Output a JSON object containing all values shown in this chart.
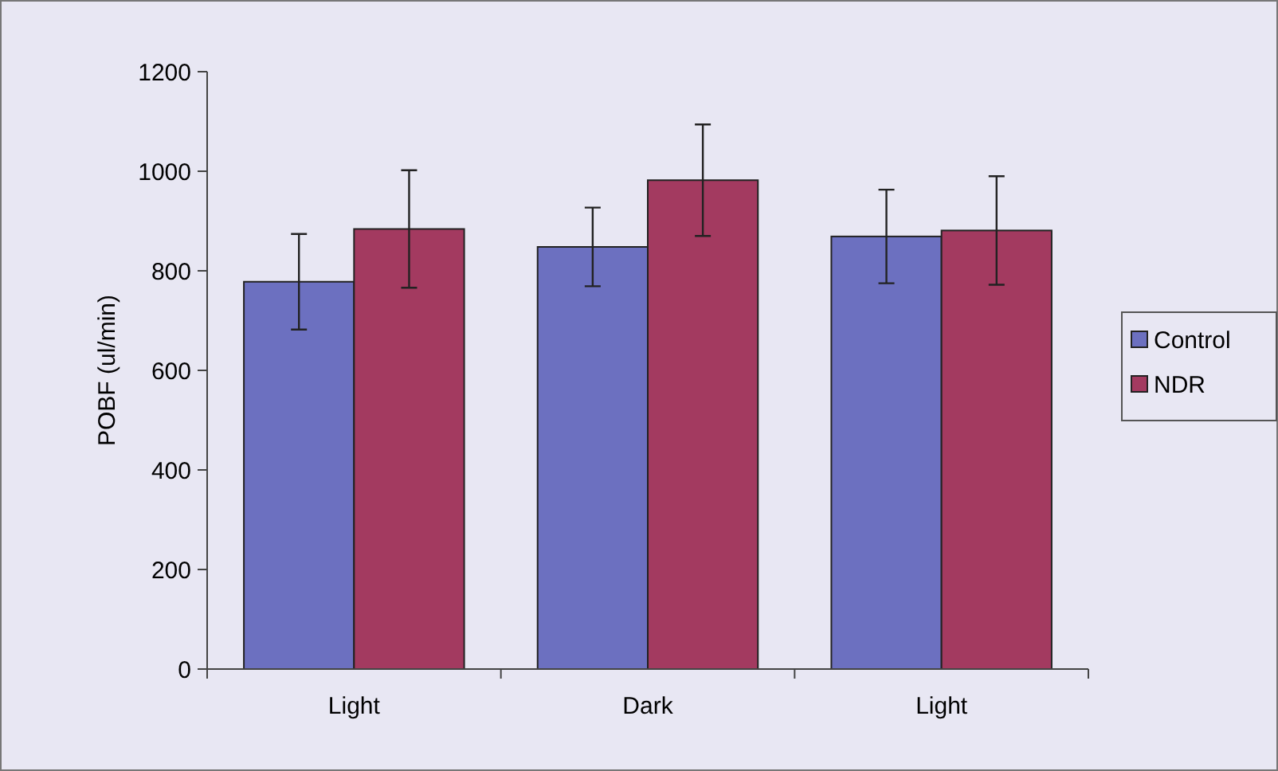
{
  "chart_data": {
    "type": "bar",
    "ylabel": "POBF (ul/min)",
    "categories": [
      "Light",
      "Dark",
      "Light"
    ],
    "series": [
      {
        "name": "Control",
        "color": "#6c70c0",
        "values": [
          778,
          848,
          869
        ],
        "errors": [
          96,
          79,
          94
        ]
      },
      {
        "name": "NDR",
        "color": "#a33a60",
        "values": [
          884,
          982,
          881
        ],
        "errors": [
          118,
          112,
          109
        ]
      }
    ],
    "ylim": [
      0,
      1200
    ],
    "yticks": [
      0,
      200,
      400,
      600,
      800,
      1000,
      1200
    ],
    "grid": false,
    "legend": "right"
  }
}
